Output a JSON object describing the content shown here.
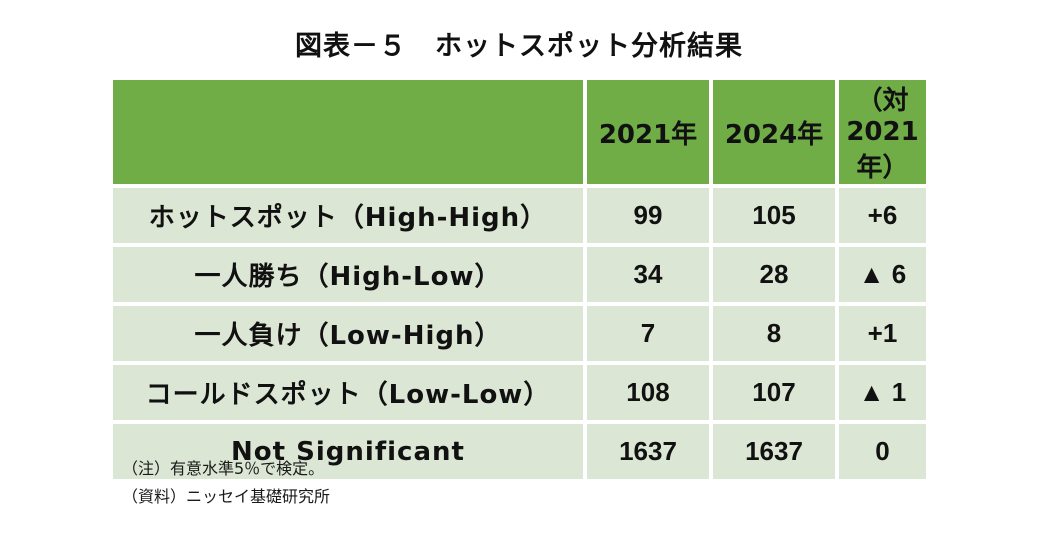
{
  "title": "図表－５　ホットスポット分析結果",
  "table": {
    "header": {
      "label": "",
      "y1": "2021年",
      "y2": "2024年",
      "diff": "（対2021年）"
    },
    "rows": [
      {
        "label": "ホットスポット（High-High）",
        "y1": "99",
        "y2": "105",
        "diff": "+6"
      },
      {
        "label": "一人勝ち（High-Low）",
        "y1": "34",
        "y2": "28",
        "diff": "▲ 6"
      },
      {
        "label": "一人負け（Low-High）",
        "y1": "7",
        "y2": "8",
        "diff": "+1"
      },
      {
        "label": "コールドスポット（Low-Low）",
        "y1": "108",
        "y2": "107",
        "diff": "▲ 1"
      },
      {
        "label": "Not Significant",
        "y1": "1637",
        "y2": "1637",
        "diff": "0"
      }
    ]
  },
  "notes": {
    "note": "（注）有意水準5％で検定。",
    "source": "（資料）ニッセイ基礎研究所"
  },
  "colors": {
    "header_bg": "#70ad47",
    "row_bg": "#dce6d4",
    "text": "#111111"
  }
}
